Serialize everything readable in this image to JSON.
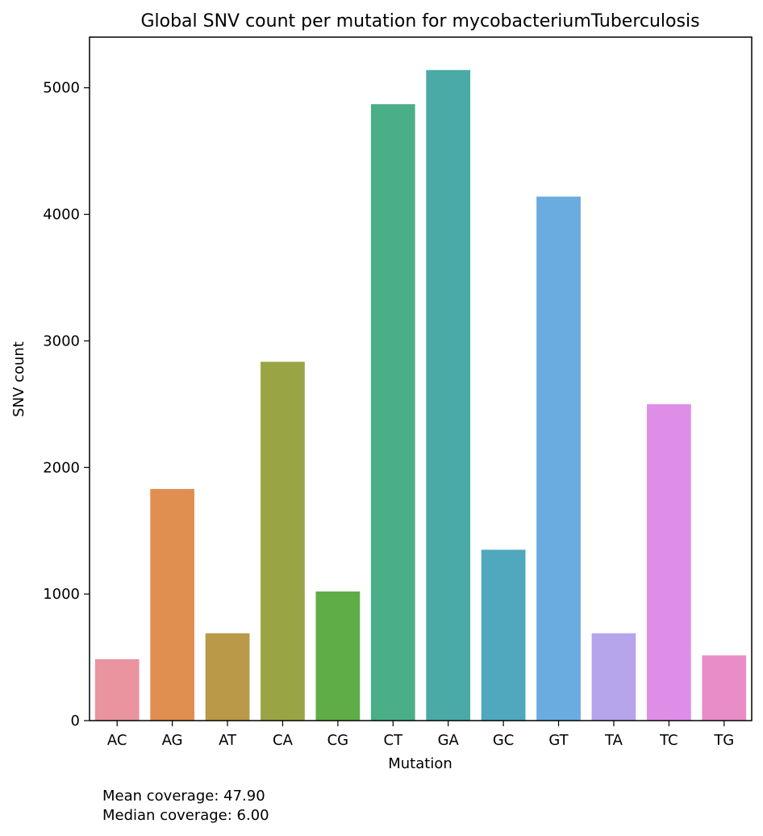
{
  "chart_data": {
    "type": "bar",
    "title": "Global SNV count per mutation for mycobacteriumTuberculosis",
    "xlabel": "Mutation",
    "ylabel": "SNV count",
    "categories": [
      "AC",
      "AG",
      "AT",
      "CA",
      "CG",
      "CT",
      "GA",
      "GC",
      "GT",
      "TA",
      "TC",
      "TG"
    ],
    "values": [
      485,
      1830,
      690,
      2835,
      1020,
      4870,
      5140,
      1350,
      4140,
      690,
      2500,
      515
    ],
    "colors": [
      "#e9949f",
      "#e08f50",
      "#b89a48",
      "#99a545",
      "#5fad47",
      "#4aae88",
      "#4aaaa6",
      "#4fa8bd",
      "#6aabe0",
      "#b6a5eb",
      "#df8ee7",
      "#e88dc6"
    ],
    "ylim": [
      0,
      5400
    ],
    "yticks": [
      0,
      1000,
      2000,
      3000,
      4000,
      5000
    ],
    "grid": false,
    "legend": "none"
  },
  "notes": {
    "mean_coverage": "Mean coverage: 47.90",
    "median_coverage": "Median coverage: 6.00"
  }
}
